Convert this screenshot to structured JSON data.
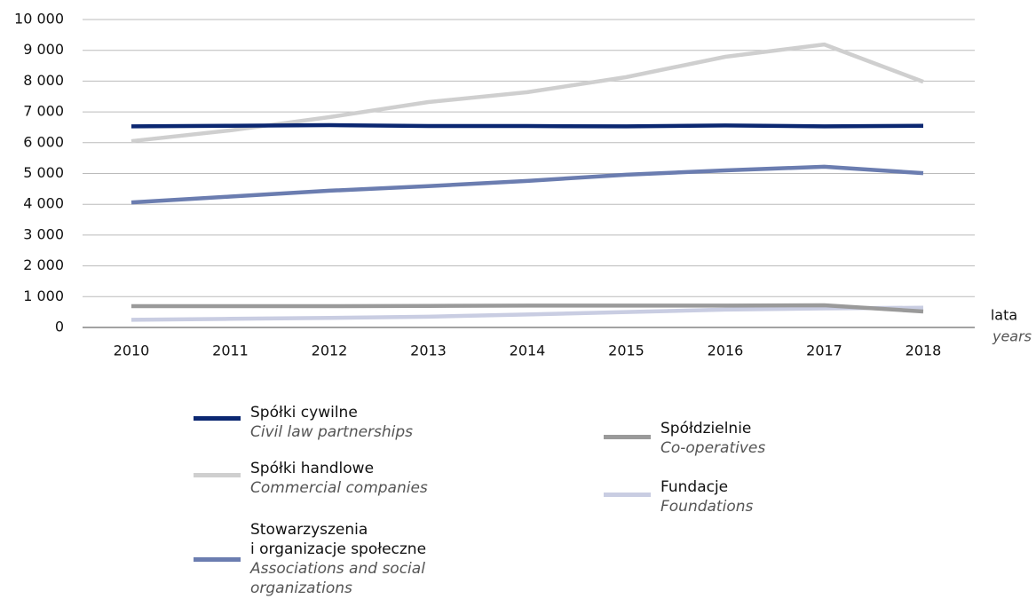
{
  "chart_data": {
    "type": "line",
    "x_label": "lata",
    "x_label_en": "years",
    "categories": [
      "2010",
      "2011",
      "2012",
      "2013",
      "2014",
      "2015",
      "2016",
      "2017",
      "2018"
    ],
    "ylim": [
      0,
      10000
    ],
    "yticks": [
      0,
      {
        "value": 1000,
        "label": "1 000"
      },
      {
        "value": 2000,
        "label": "2 000"
      },
      {
        "value": 3000,
        "label": "3 000"
      },
      {
        "value": 4000,
        "label": "4 000"
      },
      {
        "value": 5000,
        "label": "5 000"
      },
      {
        "value": 6000,
        "label": "6 000"
      },
      {
        "value": 7000,
        "label": "7 000"
      },
      {
        "value": 8000,
        "label": "8 000"
      },
      {
        "value": 9000,
        "label": "9 000"
      },
      {
        "value": 10000,
        "label": "10 000"
      }
    ],
    "grid": true,
    "series": [
      {
        "name": "Spółki cywilne",
        "name_en": "Civil law partnerships",
        "color": "#0b2771",
        "values": [
          6530,
          6550,
          6570,
          6540,
          6540,
          6530,
          6560,
          6530,
          6550
        ]
      },
      {
        "name": "Spółki handlowe",
        "name_en": "Commercial companies",
        "color": "#cfcfcf",
        "values": [
          6050,
          6400,
          6830,
          7320,
          7640,
          8130,
          8790,
          9190,
          7980
        ]
      },
      {
        "name": "Stowarzyszenia\ni organizacje społeczne",
        "name_en": "Associations and social organizations",
        "color": "#6b7db0",
        "values": [
          4060,
          4250,
          4440,
          4590,
          4760,
          4960,
          5100,
          5220,
          5010
        ]
      },
      {
        "name": "Spółdzielnie",
        "name_en": "Co-operatives",
        "color": "#9a9a9a",
        "values": [
          690,
          690,
          690,
          700,
          710,
          710,
          710,
          720,
          520
        ]
      },
      {
        "name": "Fundacje",
        "name_en": "Foundations",
        "color": "#c9cde2",
        "values": [
          250,
          280,
          310,
          350,
          420,
          500,
          580,
          620,
          640
        ]
      }
    ]
  }
}
